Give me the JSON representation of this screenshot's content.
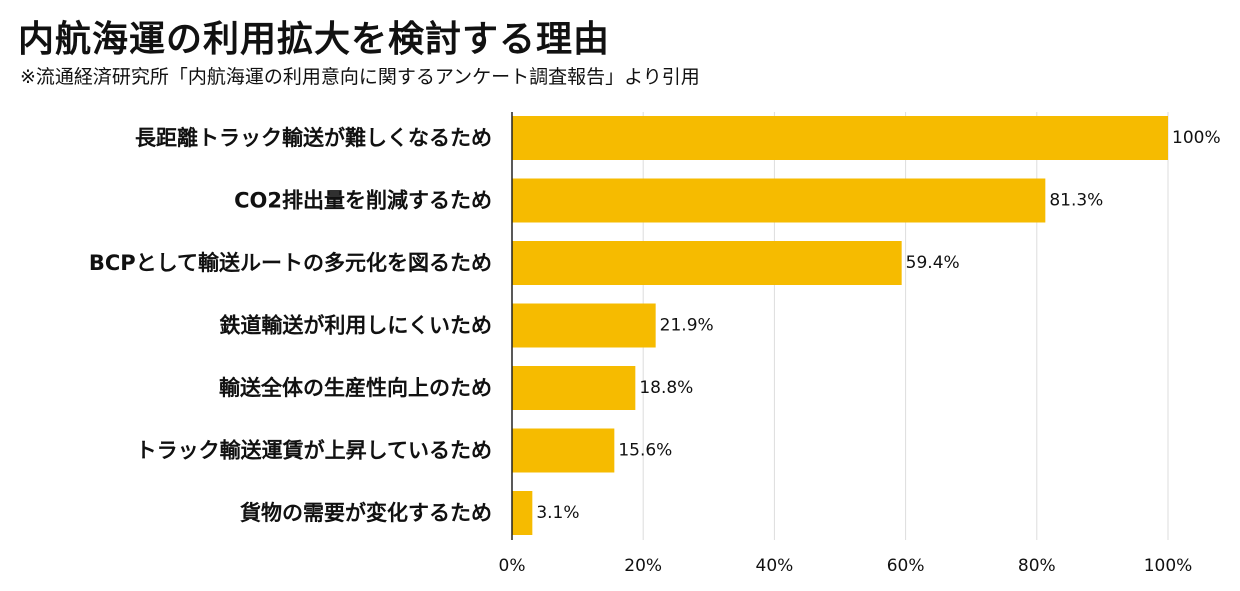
{
  "header": {
    "title": "内航海運の利用拡大を検討する理由",
    "subtitle": "※流通経済研究所「内航海運の利用意向に関するアンケート調査報告」より引用"
  },
  "colors": {
    "bar": "#F6BB00",
    "grid": "#dddddd",
    "axis": "#222222",
    "text": "#111111"
  },
  "chart_data": {
    "type": "bar",
    "orientation": "horizontal",
    "categories": [
      "長距離トラック輸送が難しくなるため",
      "CO2排出量を削減するため",
      "BCPとして輸送ルートの多元化を図るため",
      "鉄道輸送が利用しにくいため",
      "輸送全体の生産性向上のため",
      "トラック輸送運賃が上昇しているため",
      "貨物の需要が変化するため"
    ],
    "values": [
      100,
      81.3,
      59.4,
      21.9,
      18.8,
      15.6,
      3.1
    ],
    "value_labels": [
      "100%",
      "81.3%",
      "59.4%",
      "21.9%",
      "18.8%",
      "15.6%",
      "3.1%"
    ],
    "xlim": [
      0,
      100
    ],
    "xticks": [
      0,
      20,
      40,
      60,
      80,
      100
    ],
    "xtick_labels": [
      "0%",
      "20%",
      "40%",
      "60%",
      "80%",
      "100%"
    ],
    "grid": true
  }
}
